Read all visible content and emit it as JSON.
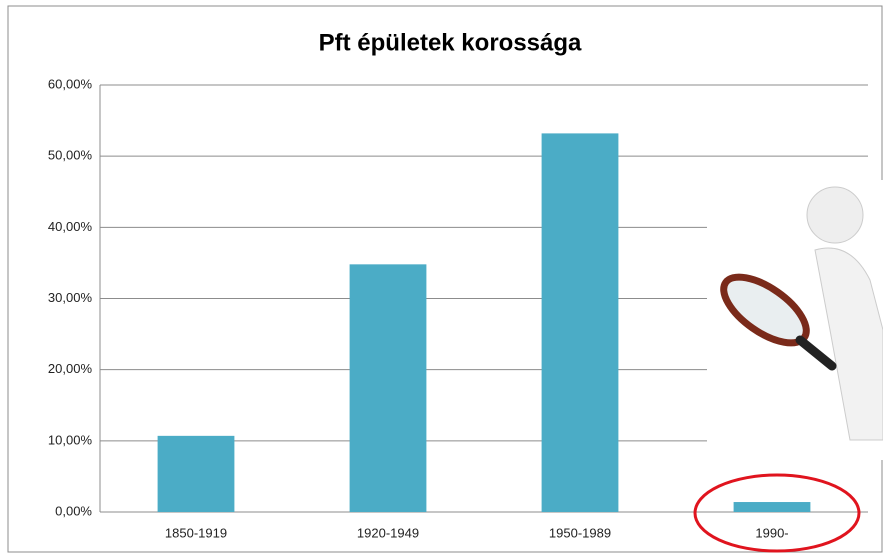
{
  "chart_data": {
    "type": "bar",
    "title": "Pft épületek korossága",
    "categories": [
      "1850-1919",
      "1920-1949",
      "1950-1989",
      "1990-"
    ],
    "values": [
      10.7,
      34.8,
      53.2,
      1.4
    ],
    "color": "#4bacc6",
    "ylim": [
      0,
      60
    ],
    "yticks": [
      {
        "value": 0,
        "label": "0,00%"
      },
      {
        "value": 10,
        "label": "10,00%"
      },
      {
        "value": 20,
        "label": "20,00%"
      },
      {
        "value": 30,
        "label": "30,00%"
      },
      {
        "value": 40,
        "label": "40,00%"
      },
      {
        "value": 50,
        "label": "50,00%"
      },
      {
        "value": 60,
        "label": "60,00%"
      }
    ],
    "grid": true
  }
}
